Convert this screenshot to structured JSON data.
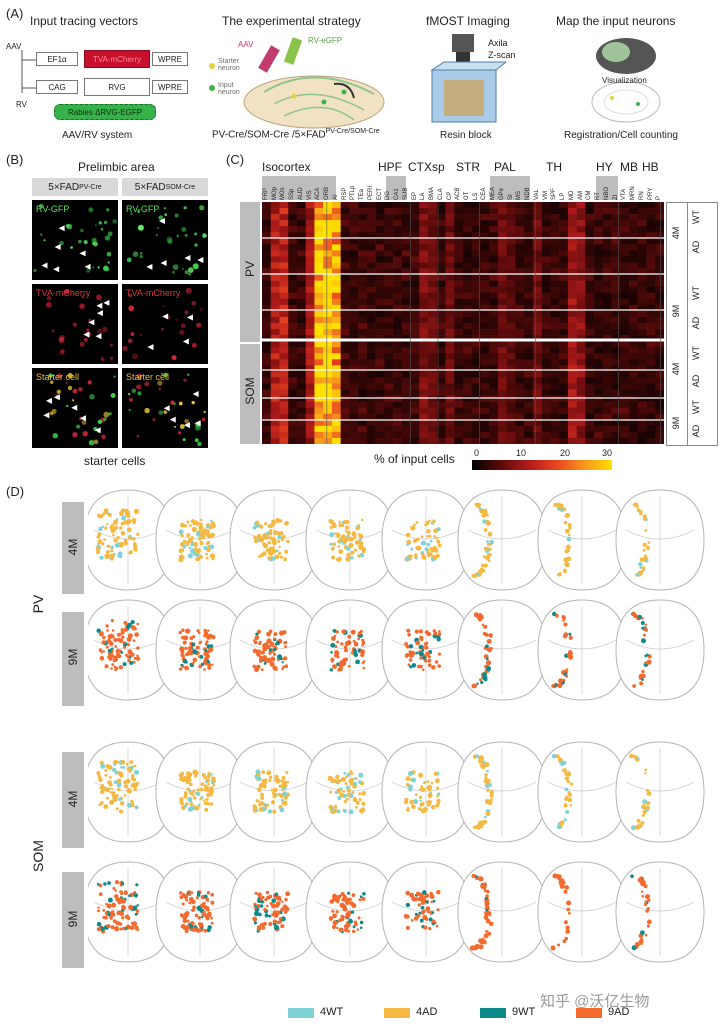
{
  "panelA": {
    "label": "(A)",
    "tracing_title": "Input tracing vectors",
    "aav_label": "AAV",
    "rv_label": "RV",
    "ef1a": "EF1α",
    "tva_mcherry": "TVA-mCherry",
    "wpre1": "WPRE",
    "cag": "CAG",
    "rvg": "RVG",
    "wpre2": "WPRE",
    "rabies": "Rabies ΔRVG-EGFP",
    "system_caption": "AAV/RV system",
    "strategy_title": "The experimental strategy",
    "aav_small": "AAV",
    "rv_egfp": "RV-eGFP",
    "starter": "Starter neuron",
    "input": "Input neuron",
    "strategy_caption_main": "PV-Cre/SOM-Cre /5×FAD",
    "strategy_caption_sup": "PV-Cre/SOM-Cre",
    "fmost_title": "fMOST Imaging",
    "axila": "Axila",
    "zscan": "Z-scan",
    "resin": "Resin block",
    "map_title": "Map the input neurons",
    "visualization": "Visualization",
    "registration": "Registration/Cell counting"
  },
  "panelB": {
    "label": "(B)",
    "title": "Prelimbic area",
    "col1": "5×FAD",
    "col1_sup": "PV-Cre",
    "col2": "5×FAD",
    "col2_sup": "SOM-Cre",
    "row1": "RV-GFP",
    "row2": "TVA-mCherry",
    "row3": "Starter cell",
    "caption": "starter cells"
  },
  "panelC": {
    "label": "(C)",
    "groups": [
      "Isocortex",
      "HPF",
      "CTXsp",
      "STR",
      "PAL",
      "TH",
      "HY",
      "MB",
      "HB"
    ],
    "regions": [
      "FRP",
      "MOp",
      "MOs",
      "SSp",
      "AUD",
      "VIS",
      "ACA",
      "ORB",
      "AI",
      "RSP",
      "PTLp",
      "TEa",
      "PERI",
      "ECT",
      "DG",
      "CA1",
      "SUB",
      "EP",
      "LA",
      "BMA",
      "CLA",
      "CP",
      "ACB",
      "OT",
      "LS",
      "CEA",
      "MEA",
      "GPe",
      "SI",
      "MS",
      "NDB",
      "VAL",
      "VM",
      "SPF",
      "LP",
      "MD",
      "AM",
      "CM",
      "RT",
      "NBO",
      "ZI",
      "VTA",
      "MRN",
      "RN",
      "PRY",
      "P"
    ],
    "colorbar_title": "% of input cells",
    "colorbar_ticks": [
      "0",
      "10",
      "20",
      "30"
    ],
    "row_groups": [
      "PV",
      "SOM"
    ],
    "age_labels": [
      "4M",
      "9M",
      "4M",
      "9M"
    ],
    "genotype_labels": [
      "WT",
      "AD",
      "WT",
      "AD",
      "WT",
      "AD",
      "WT",
      "AD"
    ]
  },
  "panelD": {
    "label": "(D)",
    "cell_type_1": "PV",
    "cell_type_2": "SOM",
    "age_4m": "4M",
    "age_9m": "9M",
    "legend": [
      {
        "label": "4WT",
        "color": "#7fd3d6"
      },
      {
        "label": "4AD",
        "color": "#f5b942"
      },
      {
        "label": "9WT",
        "color": "#0f8a8a"
      },
      {
        "label": "9AD",
        "color": "#f26a2e"
      }
    ],
    "watermark": "知乎 @沃亿生物"
  }
}
